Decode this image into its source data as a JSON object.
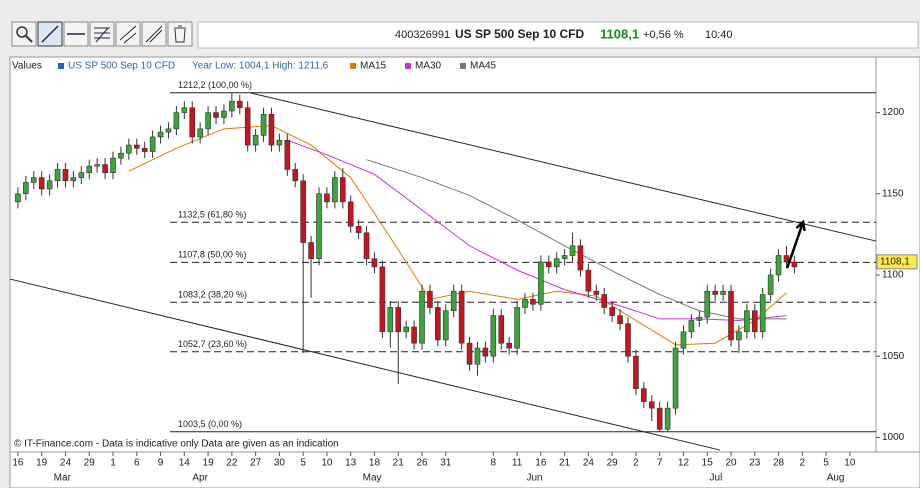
{
  "header": {
    "id": "400326991",
    "instrument": "US SP 500 Sep 10 CFD",
    "price": "1108,1",
    "change": "+0,56 %",
    "time": "10:40"
  },
  "chart_data": {
    "type": "candlestick",
    "legend_title": "Values",
    "series_name": "US SP 500 Sep 10 CFD",
    "series_color": "#336699",
    "year_range": "Year Low: 1004,1  High: 1211,6",
    "footer": "© IT-Finance.com - Data is indicative only Data are given as an indication",
    "up_color": "#3aa53a",
    "down_color": "#c8141e",
    "x": [
      0,
      1,
      2,
      3,
      4,
      5,
      6,
      7,
      8,
      9,
      10,
      11,
      12,
      13,
      14,
      15,
      16,
      17,
      18,
      19,
      20,
      21,
      22,
      23,
      24,
      25,
      26,
      27,
      28,
      29,
      30,
      31,
      32,
      33,
      34,
      35,
      36,
      37,
      38,
      39,
      40,
      41,
      42,
      43,
      44,
      45,
      46,
      47,
      48,
      49,
      50,
      51,
      52,
      53,
      54,
      55,
      56,
      57,
      58,
      59,
      60,
      61,
      62,
      63,
      64,
      65,
      66,
      67,
      68,
      69,
      70,
      71,
      72,
      73,
      74,
      75,
      76,
      77,
      78,
      79,
      80,
      81,
      82,
      83,
      84,
      85,
      86,
      87,
      88,
      89,
      90,
      91,
      92,
      93,
      94,
      95,
      96,
      97,
      98
    ],
    "open": [
      1145,
      1150,
      1157,
      1160,
      1153,
      1158,
      1165,
      1158,
      1160,
      1163,
      1167,
      1168,
      1163,
      1172,
      1175,
      1180,
      1178,
      1176,
      1185,
      1188,
      1190,
      1200,
      1203,
      1185,
      1190,
      1200,
      1197,
      1201,
      1207,
      1203,
      1180,
      1186,
      1199,
      1180,
      1183,
      1165,
      1158,
      1120,
      1110,
      1150,
      1145,
      1160,
      1145,
      1130,
      1126,
      1110,
      1105,
      1065,
      1080,
      1065,
      1068,
      1058,
      1090,
      1080,
      1060,
      1078,
      1090,
      1058,
      1045,
      1055,
      1050,
      1075,
      1058,
      1055,
      1080,
      1085,
      1082,
      1108,
      1105,
      1110,
      1112,
      1118,
      1103,
      1090,
      1088,
      1080,
      1075,
      1070,
      1050,
      1030,
      1022,
      1018,
      1005,
      1018,
      1055,
      1065,
      1072,
      1074,
      1090,
      1088,
      1090,
      1060,
      1065,
      1078,
      1065,
      1088,
      1100,
      1112,
      1108
    ],
    "high": [
      1154,
      1161,
      1164,
      1164,
      1162,
      1169,
      1169,
      1164,
      1167,
      1171,
      1172,
      1172,
      1176,
      1179,
      1184,
      1184,
      1182,
      1189,
      1192,
      1194,
      1204,
      1207,
      1207,
      1194,
      1204,
      1204,
      1205,
      1212.2,
      1211,
      1207,
      1190,
      1203,
      1203,
      1187,
      1187,
      1169,
      1162,
      1124,
      1154,
      1154,
      1164,
      1166,
      1149,
      1134,
      1130,
      1114,
      1109,
      1084,
      1084,
      1072,
      1072,
      1094,
      1094,
      1084,
      1082,
      1094,
      1094,
      1062,
      1059,
      1059,
      1079,
      1079,
      1062,
      1084,
      1089,
      1089,
      1112,
      1112,
      1114,
      1116,
      1126,
      1122,
      1107,
      1094,
      1092,
      1084,
      1079,
      1074,
      1054,
      1034,
      1026,
      1022,
      1022,
      1059,
      1069,
      1076,
      1078,
      1094,
      1094,
      1094,
      1094,
      1069,
      1082,
      1082,
      1092,
      1104,
      1116,
      1118,
      1112
    ],
    "low": [
      1141,
      1146,
      1153,
      1149,
      1149,
      1154,
      1154,
      1154,
      1156,
      1159,
      1163,
      1159,
      1159,
      1168,
      1171,
      1174,
      1172,
      1172,
      1181,
      1184,
      1186,
      1196,
      1181,
      1181,
      1186,
      1193,
      1193,
      1197,
      1199,
      1176,
      1176,
      1182,
      1176,
      1176,
      1161,
      1154,
      1052,
      1086,
      1106,
      1141,
      1141,
      1141,
      1126,
      1122,
      1106,
      1101,
      1061,
      1055,
      1033,
      1061,
      1054,
      1054,
      1076,
      1056,
      1056,
      1074,
      1054,
      1041,
      1038,
      1046,
      1046,
      1054,
      1051,
      1051,
      1076,
      1078,
      1078,
      1101,
      1101,
      1106,
      1108,
      1099,
      1086,
      1084,
      1076,
      1071,
      1066,
      1046,
      1026,
      1018,
      1010,
      1003.5,
      1004,
      1014,
      1051,
      1061,
      1068,
      1070,
      1084,
      1084,
      1056,
      1052,
      1061,
      1061,
      1061,
      1084,
      1096,
      1104,
      1101
    ],
    "close": [
      1150,
      1157,
      1160,
      1153,
      1158,
      1165,
      1158,
      1160,
      1163,
      1167,
      1168,
      1163,
      1172,
      1175,
      1180,
      1178,
      1176,
      1185,
      1188,
      1190,
      1200,
      1203,
      1185,
      1190,
      1200,
      1197,
      1201,
      1207,
      1203,
      1180,
      1186,
      1199,
      1180,
      1183,
      1165,
      1158,
      1120,
      1110,
      1150,
      1145,
      1160,
      1145,
      1130,
      1126,
      1110,
      1105,
      1065,
      1080,
      1065,
      1068,
      1058,
      1090,
      1080,
      1060,
      1078,
      1090,
      1058,
      1045,
      1055,
      1050,
      1075,
      1058,
      1055,
      1080,
      1085,
      1082,
      1108,
      1105,
      1110,
      1112,
      1118,
      1103,
      1090,
      1088,
      1080,
      1075,
      1070,
      1050,
      1030,
      1022,
      1018,
      1005,
      1018,
      1055,
      1065,
      1072,
      1074,
      1090,
      1088,
      1090,
      1060,
      1065,
      1078,
      1065,
      1088,
      1100,
      1112,
      1108,
      1105
    ],
    "moving_averages": [
      {
        "name": "MA15",
        "color": "#e07b00",
        "x": [
          14,
          20,
          26,
          32,
          37,
          42,
          45,
          49,
          52,
          57,
          63,
          68,
          73,
          78,
          83,
          88,
          93,
          97
        ],
        "values": [
          1164,
          1178,
          1190,
          1192,
          1180,
          1160,
          1138,
          1108,
          1085,
          1090,
          1085,
          1090,
          1087,
          1072,
          1057,
          1058,
          1072,
          1089
        ]
      },
      {
        "name": "MA30",
        "color": "#cc33cc",
        "x": [
          34,
          39,
          45,
          51,
          57,
          63,
          69,
          76,
          81,
          86,
          91,
          97
        ],
        "values": [
          1183,
          1174,
          1162,
          1140,
          1118,
          1103,
          1091,
          1081,
          1073,
          1073,
          1072,
          1075
        ]
      },
      {
        "name": "MA45",
        "color": "#777777",
        "x": [
          44,
          51,
          57,
          63,
          69,
          76,
          81,
          86,
          91,
          97
        ],
        "values": [
          1171,
          1160,
          1149,
          1134,
          1118,
          1100,
          1088,
          1078,
          1073,
          1073
        ]
      }
    ],
    "levels": [
      {
        "value": 1212.2,
        "label": "1212,2 (100,00 %)"
      },
      {
        "value": 1132.5,
        "label": "1132,5 (61,80 %)"
      },
      {
        "value": 1107.8,
        "label": "1107,8 (50,00 %)"
      },
      {
        "value": 1083.2,
        "label": "1083,2 (38,20 %)"
      },
      {
        "value": 1052.7,
        "label": "1052,7 (23,60 %)"
      },
      {
        "value": 1003.5,
        "label": "1003,5 (0,00 %)"
      }
    ],
    "trendlines": [
      {
        "x": [
          29.3,
          108.3
        ],
        "values": [
          1212.2,
          1120.9
        ]
      },
      {
        "x": [
          -1,
          88.6
        ],
        "values": [
          1097.5,
          992.2
        ]
      }
    ],
    "arrow": {
      "x": [
        97.1,
        99.1
      ],
      "values": [
        1104.3,
        1132.6
      ]
    },
    "last_price": {
      "value": 1108.1,
      "label": "1108,1"
    },
    "xlim": [
      -1,
      108.3
    ],
    "ylim": [
      991,
      1225
    ],
    "yticks": [
      1000,
      1050,
      1100,
      1150,
      1200
    ],
    "xticks": [
      {
        "value": 0,
        "label": "16"
      },
      {
        "value": 3,
        "label": "19"
      },
      {
        "value": 6,
        "label": "24"
      },
      {
        "value": 9,
        "label": "29"
      },
      {
        "value": 12,
        "label": "1"
      },
      {
        "value": 15,
        "label": "6"
      },
      {
        "value": 18,
        "label": "9"
      },
      {
        "value": 21,
        "label": "14"
      },
      {
        "value": 24,
        "label": "19"
      },
      {
        "value": 27,
        "label": "22"
      },
      {
        "value": 30,
        "label": "27"
      },
      {
        "value": 33,
        "label": "30"
      },
      {
        "value": 36,
        "label": "5"
      },
      {
        "value": 39,
        "label": "10"
      },
      {
        "value": 42,
        "label": "13"
      },
      {
        "value": 45,
        "label": "18"
      },
      {
        "value": 48,
        "label": "21"
      },
      {
        "value": 51,
        "label": "26"
      },
      {
        "value": 54,
        "label": "31"
      },
      {
        "value": 60,
        "label": "8"
      },
      {
        "value": 63,
        "label": "11"
      },
      {
        "value": 66,
        "label": "16"
      },
      {
        "value": 69,
        "label": "21"
      },
      {
        "value": 72,
        "label": "24"
      },
      {
        "value": 75,
        "label": "29"
      },
      {
        "value": 78,
        "label": "2"
      },
      {
        "value": 81,
        "label": "7"
      },
      {
        "value": 84,
        "label": "12"
      },
      {
        "value": 87,
        "label": "15"
      },
      {
        "value": 90,
        "label": "20"
      },
      {
        "value": 93,
        "label": "23"
      },
      {
        "value": 96,
        "label": "28"
      },
      {
        "value": 99,
        "label": "2"
      },
      {
        "value": 102,
        "label": "5"
      },
      {
        "value": 105,
        "label": "10"
      }
    ],
    "month_ticks": [
      {
        "value": 5.6,
        "label": "Mar"
      },
      {
        "value": 23,
        "label": "Apr"
      },
      {
        "value": 44.7,
        "label": "May"
      },
      {
        "value": 65.2,
        "label": "Jun"
      },
      {
        "value": 88.1,
        "label": "Jul"
      },
      {
        "value": 103.2,
        "label": "Aug"
      }
    ]
  }
}
